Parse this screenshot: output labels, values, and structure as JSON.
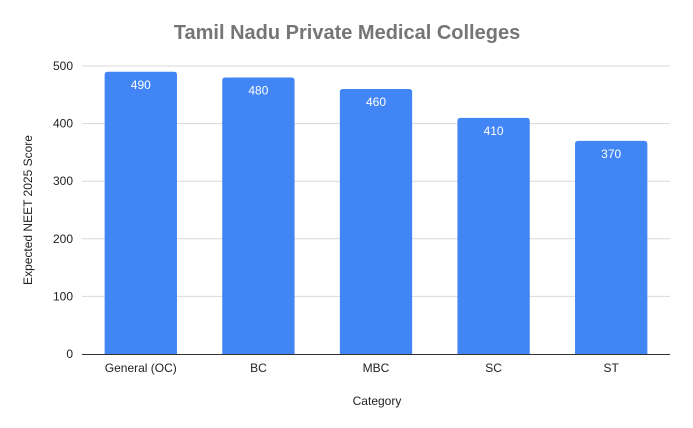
{
  "chart_data": {
    "type": "bar",
    "title": "Tamil Nadu Private Medical Colleges",
    "xlabel": "Category",
    "ylabel": "Expected NEET 2025 Score",
    "categories": [
      "General (OC)",
      "BC",
      "MBC",
      "SC",
      "ST"
    ],
    "values": [
      490,
      480,
      460,
      410,
      370
    ],
    "data_labels": [
      "490",
      "480",
      "460",
      "410",
      "370"
    ],
    "ylim": [
      0,
      500
    ],
    "yticks": [
      0,
      100,
      200,
      300,
      400,
      500
    ],
    "ytick_labels": [
      "0",
      "100",
      "200",
      "300",
      "400",
      "500"
    ],
    "grid": true,
    "legend": "none",
    "bar_color": "#4285f4"
  }
}
